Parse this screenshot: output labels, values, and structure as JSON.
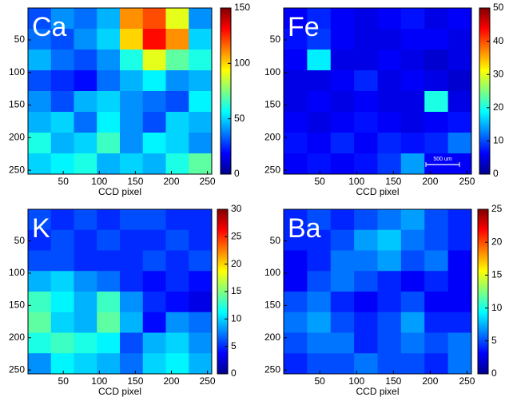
{
  "chart_data": [
    {
      "type": "heatmap",
      "label": "Ca",
      "xlabel": "CCD pixel",
      "colormap": "jet",
      "xlim": [
        1,
        256
      ],
      "ylim": [
        1,
        256
      ],
      "xticks": [
        50,
        100,
        150,
        200,
        250
      ],
      "yticks": [
        50,
        100,
        150,
        200,
        250
      ],
      "zlim": [
        0,
        150
      ],
      "zticks": [
        0,
        50,
        100,
        150
      ],
      "values": [
        [
          30,
          40,
          35,
          45,
          110,
          120,
          90,
          40
        ],
        [
          35,
          30,
          40,
          50,
          100,
          130,
          110,
          50
        ],
        [
          45,
          35,
          30,
          40,
          60,
          90,
          70,
          60
        ],
        [
          30,
          25,
          20,
          35,
          45,
          55,
          40,
          45
        ],
        [
          40,
          30,
          45,
          50,
          40,
          35,
          30,
          55
        ],
        [
          45,
          50,
          35,
          55,
          40,
          30,
          50,
          45
        ],
        [
          60,
          45,
          50,
          65,
          40,
          55,
          50,
          40
        ],
        [
          50,
          55,
          60,
          45,
          50,
          45,
          60,
          70
        ]
      ]
    },
    {
      "type": "heatmap",
      "label": "Fe",
      "xlabel": "CCD pixel",
      "colormap": "jet",
      "scale_bar": "500 um",
      "xlim": [
        1,
        256
      ],
      "ylim": [
        1,
        256
      ],
      "xticks": [
        50,
        100,
        150,
        200,
        250
      ],
      "yticks": [
        50,
        100,
        150,
        200,
        250
      ],
      "zlim": [
        0,
        50
      ],
      "zticks": [
        0,
        10,
        20,
        30,
        40,
        50
      ],
      "values": [
        [
          6,
          8,
          6,
          5,
          6,
          7,
          5,
          6
        ],
        [
          7,
          9,
          6,
          5,
          5,
          6,
          6,
          5
        ],
        [
          6,
          18,
          5,
          5,
          6,
          5,
          4,
          5
        ],
        [
          5,
          5,
          6,
          8,
          5,
          6,
          5,
          4
        ],
        [
          5,
          6,
          5,
          6,
          5,
          5,
          20,
          5
        ],
        [
          6,
          5,
          6,
          7,
          6,
          5,
          6,
          7
        ],
        [
          7,
          6,
          8,
          6,
          8,
          7,
          8,
          12
        ],
        [
          6,
          7,
          6,
          7,
          9,
          14,
          6,
          6
        ]
      ]
    },
    {
      "type": "heatmap",
      "label": "K",
      "xlabel": "CCD pixel",
      "colormap": "jet",
      "xlim": [
        1,
        256
      ],
      "ylim": [
        1,
        256
      ],
      "xticks": [
        50,
        100,
        150,
        200,
        250
      ],
      "yticks": [
        50,
        100,
        150,
        200,
        250
      ],
      "zlim": [
        0,
        30
      ],
      "zticks": [
        0,
        5,
        10,
        15,
        20,
        25,
        30
      ],
      "values": [
        [
          6,
          5,
          6,
          5,
          6,
          6,
          5,
          5
        ],
        [
          5,
          6,
          5,
          6,
          5,
          5,
          6,
          5
        ],
        [
          6,
          6,
          5,
          5,
          5,
          6,
          5,
          6
        ],
        [
          9,
          10,
          8,
          7,
          5,
          4,
          5,
          4
        ],
        [
          13,
          11,
          9,
          13,
          8,
          5,
          4,
          3
        ],
        [
          14,
          10,
          9,
          14,
          9,
          4,
          8,
          7
        ],
        [
          12,
          13,
          12,
          11,
          6,
          9,
          10,
          8
        ],
        [
          8,
          11,
          10,
          9,
          7,
          10,
          11,
          9
        ]
      ]
    },
    {
      "type": "heatmap",
      "label": "Ba",
      "xlabel": "CCD pixel",
      "colormap": "jet",
      "xlim": [
        1,
        256
      ],
      "ylim": [
        1,
        256
      ],
      "xticks": [
        50,
        100,
        150,
        200,
        250
      ],
      "yticks": [
        50,
        100,
        150,
        200,
        250
      ],
      "zlim": [
        0,
        25
      ],
      "zticks": [
        0,
        5,
        10,
        15,
        20,
        25
      ],
      "values": [
        [
          4,
          5,
          4,
          5,
          6,
          7,
          5,
          4
        ],
        [
          4,
          4,
          5,
          7,
          8,
          6,
          5,
          4
        ],
        [
          3,
          4,
          6,
          6,
          7,
          5,
          6,
          3
        ],
        [
          3,
          5,
          6,
          5,
          4,
          3,
          4,
          3
        ],
        [
          5,
          6,
          4,
          3,
          4,
          5,
          3,
          3
        ],
        [
          6,
          7,
          5,
          4,
          5,
          7,
          4,
          4
        ],
        [
          5,
          6,
          6,
          4,
          5,
          6,
          5,
          6
        ],
        [
          4,
          5,
          5,
          6,
          5,
          5,
          4,
          6
        ]
      ]
    }
  ]
}
